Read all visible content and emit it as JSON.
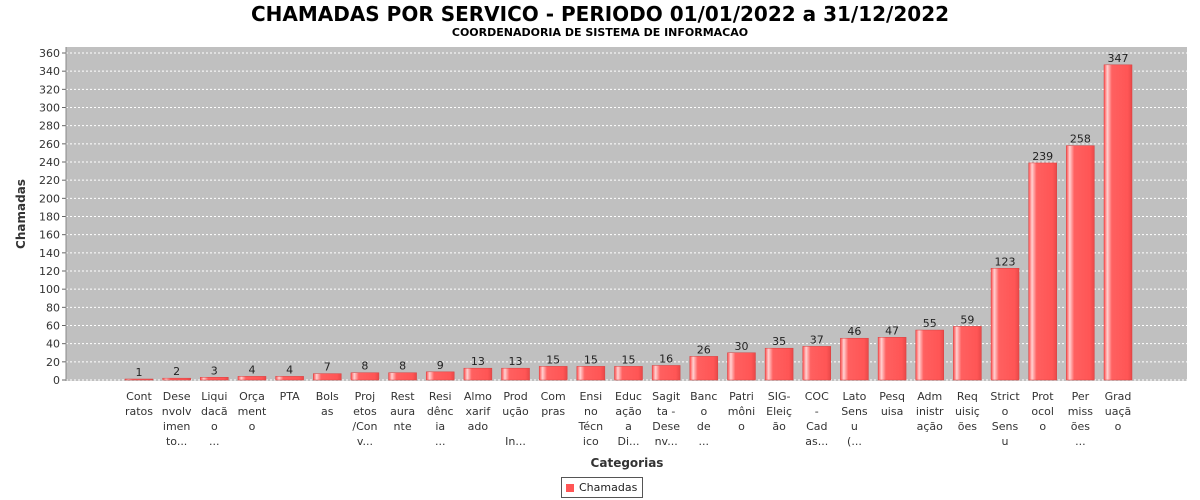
{
  "chart_data": {
    "type": "bar",
    "title": "CHAMADAS POR SERVICO - PERIODO 01/01/2022 a 31/12/2022",
    "subtitle": "COORDENADORIA DE SISTEMA DE INFORMACAO",
    "xlabel": "Categorias",
    "ylabel": "Chamadas",
    "ylim": [
      0,
      360
    ],
    "ytick_step": 20,
    "grid": true,
    "legend_position": "bottom-center",
    "bar_color": "#ff5555",
    "plot_background": "#c0c0c0",
    "series": [
      {
        "name": "Chamadas",
        "values": [
          1,
          2,
          3,
          4,
          4,
          7,
          8,
          8,
          9,
          13,
          13,
          15,
          15,
          15,
          16,
          26,
          30,
          35,
          37,
          46,
          47,
          55,
          59,
          123,
          239,
          258,
          347
        ]
      }
    ],
    "categories": [
      [
        "Cont",
        "ratos"
      ],
      [
        "Dese",
        "nvolv",
        "imen",
        "to..."
      ],
      [
        "Liqui",
        "dacã",
        "o",
        "..."
      ],
      [
        "Orça",
        "ment",
        "o"
      ],
      [
        "PTA"
      ],
      [
        "Bols",
        "as"
      ],
      [
        "Proj",
        "etos",
        "/Con",
        "v..."
      ],
      [
        "Rest",
        "aura",
        "nte"
      ],
      [
        "Resi",
        "dênc",
        "ia",
        "..."
      ],
      [
        "Almo",
        "xarif",
        "ado"
      ],
      [
        "Prod",
        "ução",
        "",
        "In..."
      ],
      [
        "Com",
        "pras"
      ],
      [
        "Ensi",
        "no",
        "Técn",
        "ico"
      ],
      [
        "Educ",
        "ação",
        "a",
        "Di..."
      ],
      [
        "Sagit",
        "ta -",
        "Dese",
        "nv..."
      ],
      [
        "Banc",
        "o",
        "de",
        "..."
      ],
      [
        "Patri",
        "môni",
        "o"
      ],
      [
        "SIG-",
        "Eleiç",
        "ão"
      ],
      [
        "COC",
        "-",
        "Cad",
        "as..."
      ],
      [
        "Lato",
        "Sens",
        "u",
        "(..."
      ],
      [
        "Pesq",
        "uisa"
      ],
      [
        "Adm",
        "inistr",
        "ação"
      ],
      [
        "Req",
        "uisiç",
        "ões"
      ],
      [
        "Strict",
        "o",
        "Sens",
        "u"
      ],
      [
        "Prot",
        "ocol",
        "o"
      ],
      [
        "Per",
        "miss",
        "ões",
        "..."
      ],
      [
        "Grad",
        "uaçã",
        "o"
      ]
    ]
  }
}
